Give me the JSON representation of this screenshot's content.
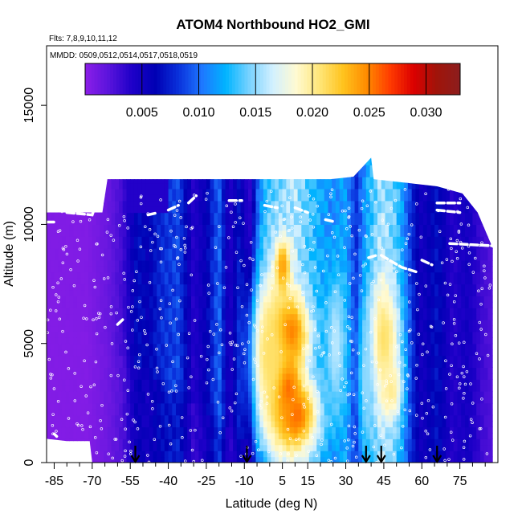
{
  "chart_data": {
    "type": "heatmap",
    "title": "ATOM4 Northbound HO2_GMI",
    "flights_label": "Flts: 7,8,9,10,11,12",
    "dates_label": "MMDD: 0509,0512,0514,0517,0518,0519",
    "xlabel": "Latitude (deg N)",
    "ylabel": "Altitude (m)",
    "xlim": [
      -88,
      90
    ],
    "ylim": [
      0,
      17500
    ],
    "x_ticks": [
      -85,
      -70,
      -55,
      -40,
      -25,
      -10,
      5,
      15,
      30,
      45,
      60,
      75
    ],
    "x_minor_ticks": [
      -80,
      -75,
      -65,
      -60,
      -50,
      -45,
      -35,
      -30,
      -20,
      -15,
      -5,
      0,
      10,
      20,
      25,
      35,
      40,
      50,
      55,
      65,
      70,
      80,
      85
    ],
    "y_ticks": [
      0,
      5000,
      10000,
      15000
    ],
    "colorbar": {
      "min": 0.0,
      "max": 0.033,
      "ticks": [
        0.005,
        0.01,
        0.015,
        0.02,
        0.025,
        0.03
      ],
      "tick_labels": [
        "0.005",
        "0.010",
        "0.015",
        "0.020",
        "0.025",
        "0.030"
      ],
      "colors": [
        "#8c1ee8",
        "#5a14dc",
        "#1e00c8",
        "#0000b4",
        "#0a32dc",
        "#1e78ff",
        "#00b4ff",
        "#78d2ff",
        "#d2f0ff",
        "#fffad2",
        "#ffe678",
        "#ffc31e",
        "#ff8c00",
        "#ff3c00",
        "#dc0000",
        "#a0140a",
        "#8c1e1e"
      ]
    },
    "top_altitude_profile": [
      {
        "lat": -88,
        "alt": 10500
      },
      {
        "lat": -66,
        "alt": 10500
      },
      {
        "lat": -64,
        "alt": 11900
      },
      {
        "lat": -45,
        "alt": 11900
      },
      {
        "lat": -10,
        "alt": 11900
      },
      {
        "lat": 24,
        "alt": 11900
      },
      {
        "lat": 33,
        "alt": 12000
      },
      {
        "lat": 40,
        "alt": 12800
      },
      {
        "lat": 41,
        "alt": 11900
      },
      {
        "lat": 66,
        "alt": 11600
      },
      {
        "lat": 76,
        "alt": 11300
      },
      {
        "lat": 82,
        "alt": 10500
      },
      {
        "lat": 88,
        "alt": 9000
      }
    ],
    "bottom_altitude_profile": [
      {
        "lat": -88,
        "alt": 1000
      },
      {
        "lat": -80,
        "alt": 900
      },
      {
        "lat": -71,
        "alt": 900
      },
      {
        "lat": -70,
        "alt": 0
      },
      {
        "lat": 88,
        "alt": 0
      }
    ],
    "hotspots": [
      {
        "lat": 6,
        "alt": 3000,
        "value": 0.032,
        "radius_lat": 5,
        "radius_alt": 1400
      },
      {
        "lat": 7,
        "alt": 5500,
        "value": 0.027,
        "radius_lat": 8,
        "radius_alt": 1500
      },
      {
        "lat": 5,
        "alt": 8200,
        "value": 0.025,
        "radius_lat": 3,
        "radius_alt": 1200
      },
      {
        "lat": 10,
        "alt": 2000,
        "value": 0.026,
        "radius_lat": 9,
        "radius_alt": 1500
      },
      {
        "lat": 0,
        "alt": 4500,
        "value": 0.021,
        "radius_lat": 8,
        "radius_alt": 3500
      },
      {
        "lat": 45,
        "alt": 5200,
        "value": 0.021,
        "radius_lat": 6,
        "radius_alt": 2500
      },
      {
        "lat": 48,
        "alt": 3000,
        "value": 0.02,
        "radius_lat": 4,
        "radius_alt": 1200
      },
      {
        "lat": 26,
        "alt": 5000,
        "value": 0.016,
        "radius_lat": 4,
        "radius_alt": 3000
      },
      {
        "lat": 38,
        "alt": 3500,
        "value": 0.015,
        "radius_lat": 3,
        "radius_alt": 3000
      }
    ],
    "bands": [
      {
        "lat": -88,
        "value": 0.0005
      },
      {
        "lat": -72,
        "value": 0.0005
      },
      {
        "lat": -64,
        "value": 0.0015
      },
      {
        "lat": -58,
        "value": 0.003
      },
      {
        "lat": -52,
        "value": 0.007
      },
      {
        "lat": -48,
        "value": 0.006
      },
      {
        "lat": -43,
        "value": 0.008
      },
      {
        "lat": -36,
        "value": 0.009
      },
      {
        "lat": -30,
        "value": 0.004
      },
      {
        "lat": -25,
        "value": 0.006
      },
      {
        "lat": -20,
        "value": 0.01
      },
      {
        "lat": -16,
        "value": 0.004
      },
      {
        "lat": -12,
        "value": 0.007
      },
      {
        "lat": -8,
        "value": 0.003
      },
      {
        "lat": -4,
        "value": 0.011
      },
      {
        "lat": 0,
        "value": 0.014
      },
      {
        "lat": 10,
        "value": 0.016
      },
      {
        "lat": 18,
        "value": 0.013
      },
      {
        "lat": 24,
        "value": 0.011
      },
      {
        "lat": 30,
        "value": 0.012
      },
      {
        "lat": 34,
        "value": 0.008
      },
      {
        "lat": 38,
        "value": 0.012
      },
      {
        "lat": 44,
        "value": 0.016
      },
      {
        "lat": 50,
        "value": 0.014
      },
      {
        "lat": 56,
        "value": 0.008
      },
      {
        "lat": 60,
        "value": 0.005
      },
      {
        "lat": 66,
        "value": 0.007
      },
      {
        "lat": 72,
        "value": 0.004
      },
      {
        "lat": 78,
        "value": 0.005
      },
      {
        "lat": 84,
        "value": 0.003
      },
      {
        "lat": 90,
        "value": 0.002
      }
    ],
    "sample_density": "open white circles scattered throughout data region",
    "white_tracks": [
      [
        {
          "lat": -88,
          "alt": 10100
        },
        {
          "lat": -84,
          "alt": 10100
        }
      ],
      [
        {
          "lat": -80,
          "alt": 10500
        },
        {
          "lat": -70,
          "alt": 10400
        },
        {
          "lat": -66,
          "alt": 11600
        }
      ],
      [
        {
          "lat": -48,
          "alt": 10400
        },
        {
          "lat": -44,
          "alt": 10500
        }
      ],
      [
        {
          "lat": -40,
          "alt": 10600
        },
        {
          "lat": -36,
          "alt": 10800
        }
      ],
      [
        {
          "lat": -32,
          "alt": 10900
        },
        {
          "lat": -29,
          "alt": 11200
        }
      ],
      [
        {
          "lat": -16,
          "alt": 11000
        },
        {
          "lat": -11,
          "alt": 11000
        }
      ],
      [
        {
          "lat": -2,
          "alt": 10800
        },
        {
          "lat": 3,
          "alt": 10700
        }
      ],
      [
        {
          "lat": 10,
          "alt": 10700
        },
        {
          "lat": 15,
          "alt": 10500
        }
      ],
      [
        {
          "lat": 22,
          "alt": 10200
        },
        {
          "lat": 26,
          "alt": 10100
        }
      ],
      [
        {
          "lat": 44,
          "alt": 8700
        },
        {
          "lat": 52,
          "alt": 8200
        },
        {
          "lat": 58,
          "alt": 8000
        }
      ],
      [
        {
          "lat": 39,
          "alt": 8600
        },
        {
          "lat": 42,
          "alt": 8700
        }
      ],
      [
        {
          "lat": 66,
          "alt": 10900
        },
        {
          "lat": 75,
          "alt": 10900
        }
      ],
      [
        {
          "lat": 66,
          "alt": 10600
        },
        {
          "lat": 75,
          "alt": 10500
        }
      ],
      [
        {
          "lat": 71,
          "alt": 9200
        },
        {
          "lat": 88,
          "alt": 9100
        }
      ],
      [
        {
          "lat": 60,
          "alt": 8500
        },
        {
          "lat": 64,
          "alt": 8300
        }
      ],
      [
        {
          "lat": -60,
          "alt": 5800
        },
        {
          "lat": -58,
          "alt": 6000
        }
      ],
      [
        {
          "lat": -85,
          "alt": 1200
        },
        {
          "lat": -84,
          "alt": 1100
        }
      ]
    ],
    "arrows_latitudes": [
      -53,
      -9,
      38,
      44,
      66
    ]
  }
}
